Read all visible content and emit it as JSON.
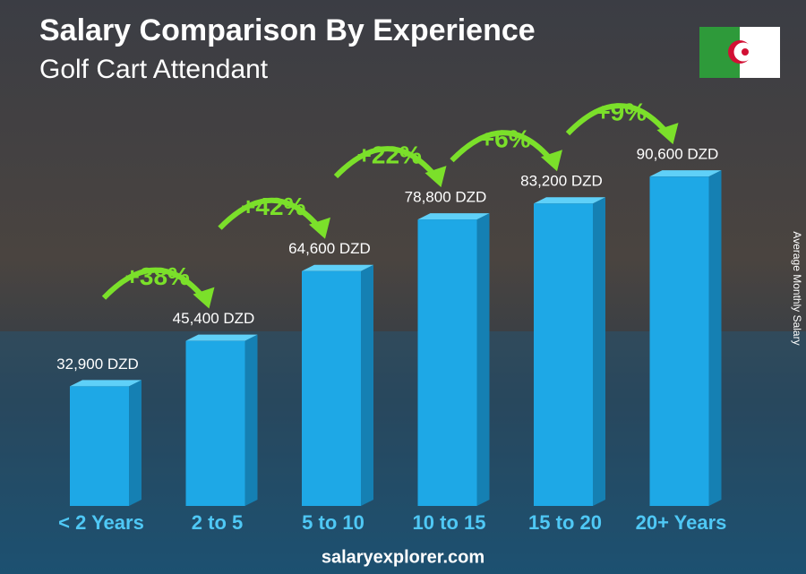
{
  "chart_data": {
    "type": "bar",
    "title": "Salary Comparison By Experience",
    "subtitle": "Golf Cart Attendant",
    "y_axis_label": "Average Monthly Salary",
    "categories": [
      "< 2 Years",
      "2 to 5",
      "5 to 10",
      "10 to 15",
      "15 to 20",
      "20+ Years"
    ],
    "values": [
      32900,
      45400,
      64600,
      78800,
      83200,
      90600
    ],
    "value_labels": [
      "32,900 DZD",
      "45,400 DZD",
      "64,600 DZD",
      "78,800 DZD",
      "83,200 DZD",
      "90,600 DZD"
    ],
    "annotations": [
      "+38%",
      "+42%",
      "+22%",
      "+6%",
      "+9%"
    ],
    "color": "#1ea8e6",
    "footer": "salaryexplorer.com"
  }
}
